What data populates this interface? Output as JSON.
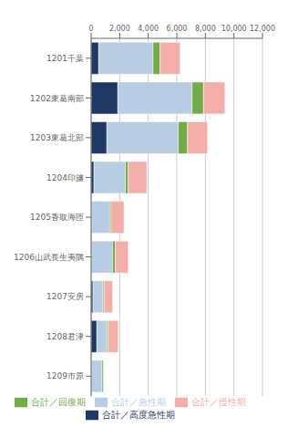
{
  "chart_data": {
    "type": "bar",
    "orientation": "horizontal",
    "stacked": true,
    "categories": [
      "1201千葉",
      "1202東葛南部",
      "1203東葛北部",
      "1204印旛",
      "1205香取海匝",
      "1206山武長生夷隅",
      "1207安房",
      "1208君津",
      "1209市原"
    ],
    "series": [
      {
        "name": "合計／高度急性期",
        "color": "#1F3864",
        "values": [
          530,
          1870,
          1100,
          200,
          0,
          0,
          130,
          400,
          0
        ]
      },
      {
        "name": "合計／急性期",
        "color": "#B8CCE4",
        "values": [
          3800,
          5200,
          5000,
          2200,
          1300,
          1500,
          700,
          700,
          750
        ]
      },
      {
        "name": "合計／回復期",
        "color": "#70AD47",
        "values": [
          500,
          800,
          650,
          200,
          100,
          200,
          80,
          100,
          100
        ]
      },
      {
        "name": "合計／慢性期",
        "color": "#F4AEAA",
        "values": [
          1400,
          1500,
          1400,
          1300,
          900,
          900,
          600,
          700,
          0
        ]
      }
    ],
    "xlim": [
      0,
      12000
    ],
    "xticks": [
      0,
      {
        "value": 2000,
        "label": "2,000"
      },
      {
        "value": 4000,
        "label": "4,000"
      },
      {
        "value": 6000,
        "label": "6,000"
      },
      {
        "value": 8000,
        "label": "8,000"
      },
      {
        "value": 10000,
        "label": "10,000"
      },
      {
        "value": 12000,
        "label": "12,000"
      }
    ],
    "grid": true,
    "legend": "bottom"
  }
}
